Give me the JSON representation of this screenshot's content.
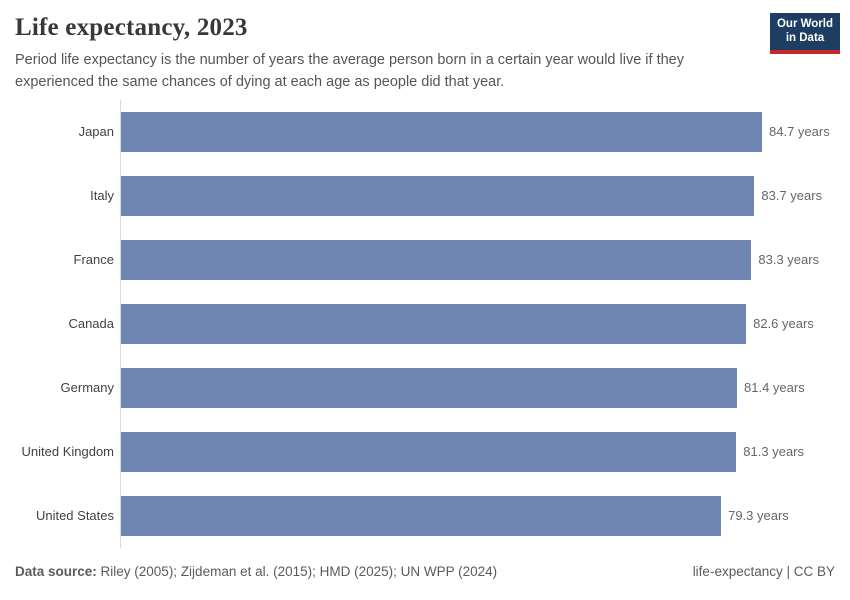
{
  "header": {
    "title": "Life expectancy, 2023",
    "subtitle": "Period life expectancy is the number of years the average person born in a certain year would live if they experienced the same chances of dying at each age as people did that year.",
    "logo": {
      "line1": "Our World",
      "line2": "in Data"
    }
  },
  "chart_data": {
    "type": "bar",
    "orientation": "horizontal",
    "title": "Life expectancy, 2023",
    "categories": [
      "Japan",
      "Italy",
      "France",
      "Canada",
      "Germany",
      "United Kingdom",
      "United States"
    ],
    "values": [
      84.7,
      83.7,
      83.3,
      82.6,
      81.4,
      81.3,
      79.3
    ],
    "value_labels": [
      "84.7 years",
      "83.7 years",
      "83.3 years",
      "82.6 years",
      "81.4 years",
      "81.3 years",
      "79.3 years"
    ],
    "value_suffix": " years",
    "xlim": [
      0,
      84.7
    ],
    "grid": false,
    "legend": "none",
    "bar_color": "#6d85b0"
  },
  "footer": {
    "data_source_label": "Data source:",
    "data_source_text": " Riley (2005); Zijdeman et al. (2015); HMD (2025); UN WPP (2024)",
    "note": "life-expectancy | CC BY"
  },
  "colors": {
    "bar": "#6d85b0",
    "logo_background": "#1d3d63",
    "logo_stripe": "#c7262d",
    "axis_line": "#dadada",
    "title_text": "#383838",
    "subtitle_text": "#555555",
    "label_text": "#424242",
    "value_text": "#666666",
    "footer_text": "#5b5b5b"
  }
}
